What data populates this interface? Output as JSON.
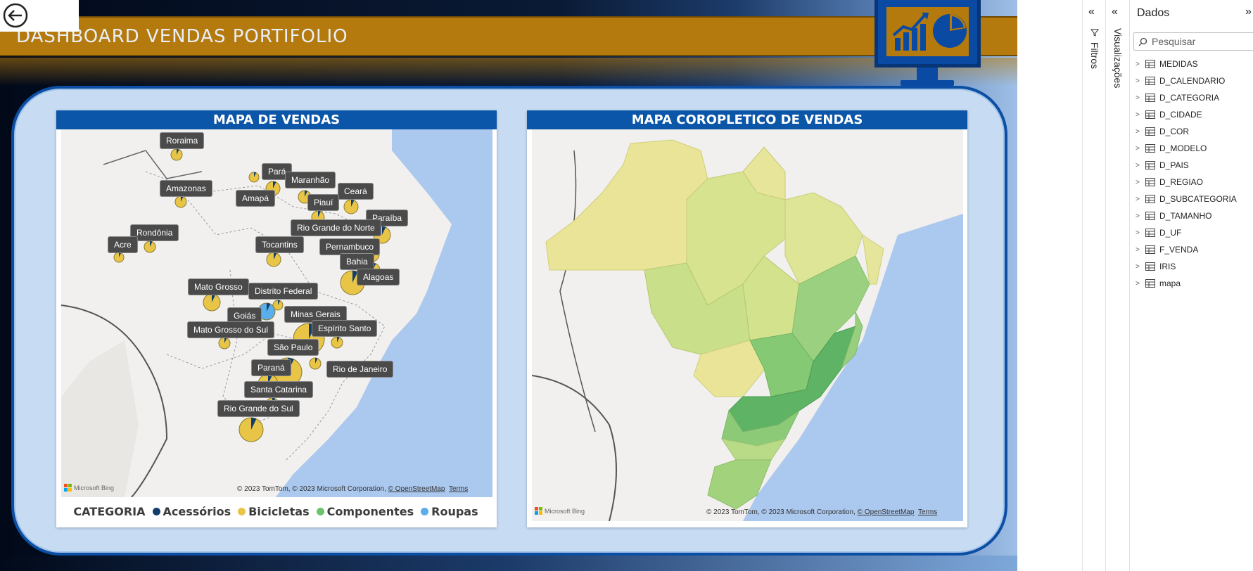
{
  "dashboard": {
    "title": "DASHBOARD VENDAS PORTIFOLIO",
    "back_button": "back-arrow-icon",
    "colors": {
      "gold": "#b47a0d",
      "blue": "#0b56a8",
      "panel": "#c7dcf3"
    }
  },
  "map_vendas": {
    "title": "MAPA DE VENDAS",
    "states": [
      "Roraima",
      "Pará",
      "Maranhão",
      "Amazonas",
      "Amapá",
      "Ceará",
      "Piauí",
      "Paraíba",
      "Rio Grande do Norte",
      "Rondônia",
      "Acre",
      "Tocantins",
      "Pernambuco",
      "Bahia",
      "Alagoas",
      "Mato Grosso",
      "Distrito Federal",
      "Goiás",
      "Minas Gerais",
      "Espírito Santo",
      "Mato Grosso do Sul",
      "São Paulo",
      "Paraná",
      "Rio de Janeiro",
      "Santa Catarina",
      "Rio Grande do Sul"
    ],
    "copyright": "© 2023 TomTom, © 2023 Microsoft Corporation,",
    "osm": "© OpenStreetMap",
    "terms": "Terms",
    "bing": "Microsoft Bing",
    "legend": {
      "title": "CATEGORIA",
      "items": [
        {
          "label": "Acessórios",
          "color": "#133d6d"
        },
        {
          "label": "Bicicletas",
          "color": "#e8c547"
        },
        {
          "label": "Componentes",
          "color": "#6bc36b"
        },
        {
          "label": "Roupas",
          "color": "#5aaeea"
        }
      ]
    }
  },
  "map_coropletico": {
    "title": "MAPA COROPLETICO DE VENDAS",
    "copyright": "© 2023 TomTom, © 2023 Microsoft Corporation,",
    "osm": "© OpenStreetMap",
    "terms": "Terms",
    "bing": "Microsoft Bing"
  },
  "panes": {
    "filtros": "Filtros",
    "visualizacoes": "Visualizações",
    "dados": {
      "title": "Dados",
      "search_placeholder": "Pesquisar",
      "fields": [
        "MEDIDAS",
        "D_CALENDARIO",
        "D_CATEGORIA",
        "D_CIDADE",
        "D_COR",
        "D_MODELO",
        "D_PAIS",
        "D_REGIAO",
        "D_SUBCATEGORIA",
        "D_TAMANHO",
        "D_UF",
        "F_VENDA",
        "IRIS",
        "mapa"
      ]
    }
  }
}
